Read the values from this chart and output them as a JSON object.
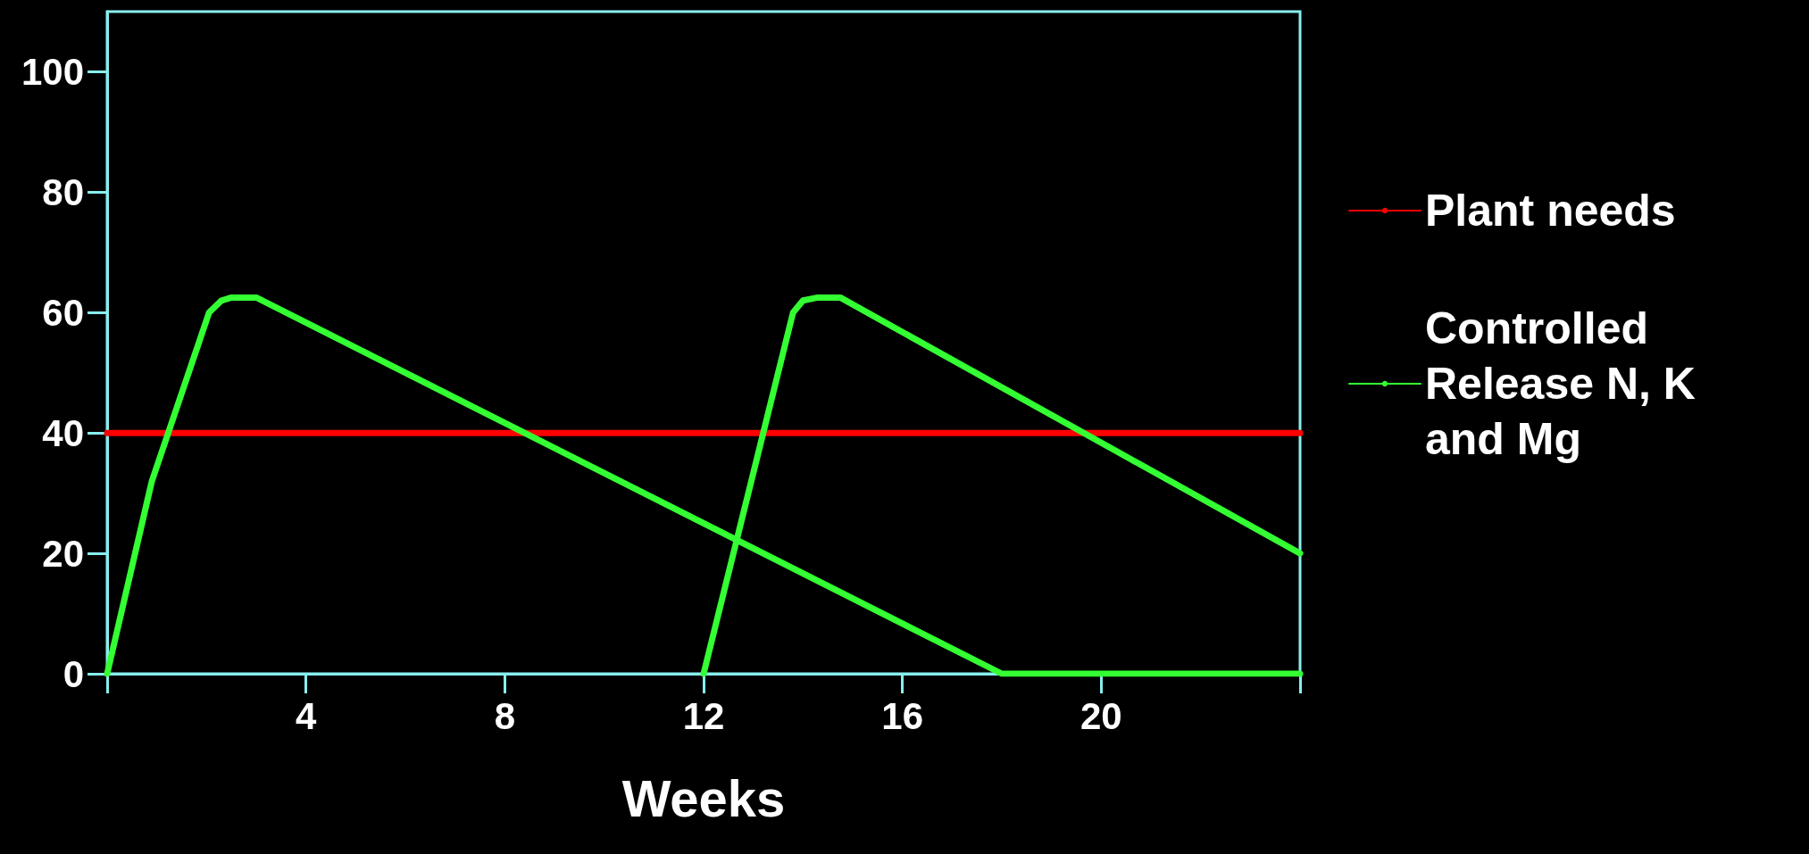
{
  "chart_data": {
    "type": "line",
    "xlabel": "Weeks",
    "xlim": [
      0,
      24
    ],
    "xticks": [
      {
        "value": 0,
        "label": null
      },
      4,
      8,
      12,
      16,
      20,
      {
        "value": 24,
        "label": null
      }
    ],
    "ylim": [
      0,
      110
    ],
    "yticks": [
      0,
      20,
      40,
      60,
      80,
      100
    ],
    "grid": false,
    "legend": "right",
    "marker": "none",
    "line_style": "solid",
    "series": [
      {
        "name": "Plant needs",
        "color": "#ff0000",
        "x": [
          0,
          24
        ],
        "values": [
          40,
          40
        ]
      },
      {
        "name": "Controlled Release N, K and Mg",
        "color": "#33ff33",
        "x": [
          0,
          0.9,
          2.05,
          2.3,
          2.5,
          3,
          18,
          24
        ],
        "values": [
          0,
          32,
          60,
          62,
          62.5,
          62.5,
          0,
          0
        ]
      },
      {
        "color": "#33ff33",
        "x": [
          12,
          13.8,
          14,
          14.3,
          14.75,
          24
        ],
        "values": [
          0,
          60,
          62,
          62.5,
          62.5,
          20
        ]
      }
    ]
  }
}
